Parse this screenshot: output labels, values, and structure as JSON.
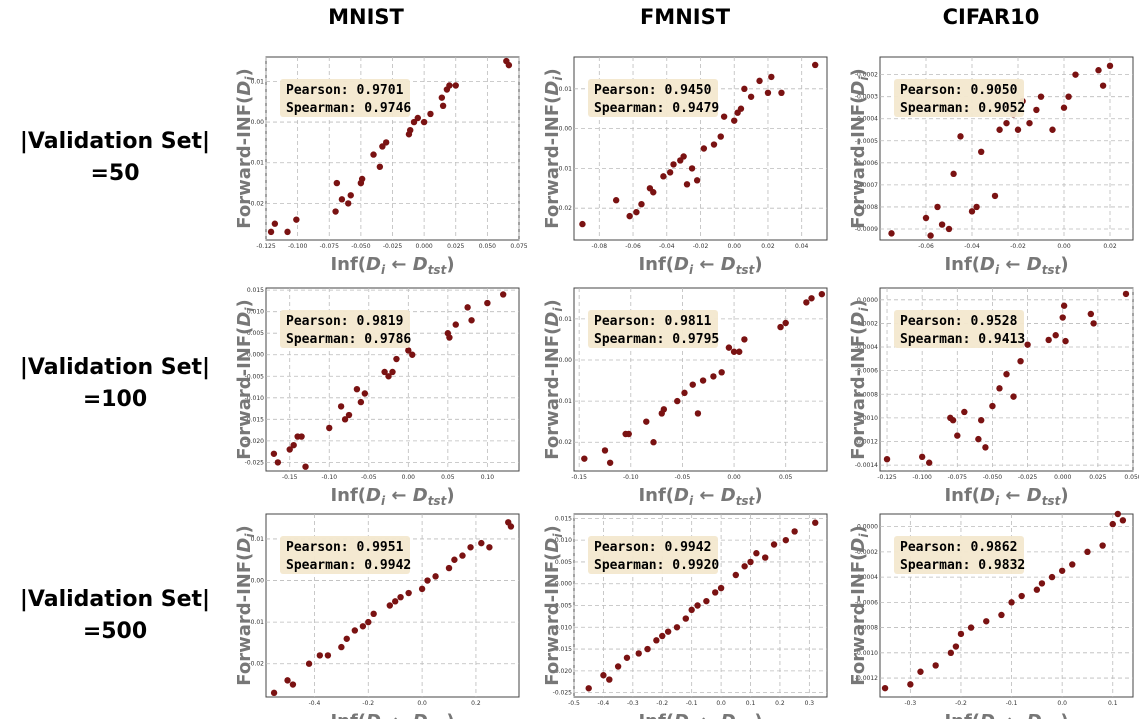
{
  "figure": {
    "column_titles": [
      "MNIST",
      "FMNIST",
      "CIFAR10"
    ],
    "row_labels": [
      [
        "|Validation Set|",
        "=50"
      ],
      [
        "|Validation Set|",
        "=100"
      ],
      [
        "|Validation Set|",
        "=500"
      ]
    ]
  },
  "chart_data": [
    {
      "type": "scatter",
      "dataset": "MNIST",
      "validation_set": "50",
      "xlabel": "Inf(D_i ← D_tst)",
      "ylabel": "Forward-INF(D_i)",
      "annotation": {
        "pearson": "Pearson: 0.9701",
        "spearman": "Spearman: 0.9746"
      },
      "xlim": [
        -0.125,
        0.075
      ],
      "ylim": [
        -0.029,
        0.016
      ],
      "xticks": [
        "-0.125",
        "-0.100",
        "-0.075",
        "-0.050",
        "-0.025",
        "0.000",
        "0.025",
        "0.050",
        "0.075"
      ],
      "yticks": [
        "0.01",
        "0.00",
        "-0.01",
        "-0.02"
      ],
      "x": [
        -0.121,
        -0.118,
        -0.108,
        -0.101,
        -0.07,
        -0.069,
        -0.065,
        -0.06,
        -0.058,
        -0.05,
        -0.049,
        -0.04,
        -0.035,
        -0.033,
        -0.03,
        -0.012,
        -0.011,
        -0.008,
        -0.005,
        0.0,
        0.005,
        0.014,
        0.015,
        0.018,
        0.02,
        0.025,
        0.065,
        0.067
      ],
      "y": [
        -0.027,
        -0.025,
        -0.027,
        -0.024,
        -0.022,
        -0.015,
        -0.019,
        -0.02,
        -0.018,
        -0.015,
        -0.014,
        -0.008,
        -0.011,
        -0.006,
        -0.005,
        -0.003,
        -0.002,
        0.0,
        0.001,
        0.0,
        0.002,
        0.006,
        0.004,
        0.008,
        0.009,
        0.009,
        0.015,
        0.014
      ]
    },
    {
      "type": "scatter",
      "dataset": "FMNIST",
      "validation_set": "50",
      "xlabel": "Inf(D_i ← D_tst)",
      "ylabel": "Forward-INF(D_i)",
      "annotation": {
        "pearson": "Pearson: 0.9450",
        "spearman": "Spearman: 0.9479"
      },
      "xlim": [
        -0.095,
        0.055
      ],
      "ylim": [
        -0.028,
        0.018
      ],
      "xticks": [
        "-0.08",
        "-0.06",
        "-0.04",
        "-0.02",
        "0.00",
        "0.02",
        "0.04"
      ],
      "yticks": [
        "0.01",
        "0.00",
        "-0.01",
        "-0.02"
      ],
      "x": [
        -0.09,
        -0.07,
        -0.062,
        -0.058,
        -0.055,
        -0.05,
        -0.048,
        -0.042,
        -0.038,
        -0.036,
        -0.032,
        -0.03,
        -0.028,
        -0.025,
        -0.022,
        -0.018,
        -0.012,
        -0.008,
        -0.006,
        0.0,
        0.002,
        0.004,
        0.006,
        0.01,
        0.015,
        0.02,
        0.022,
        0.028,
        0.048
      ],
      "y": [
        -0.024,
        -0.018,
        -0.022,
        -0.021,
        -0.019,
        -0.015,
        -0.016,
        -0.012,
        -0.011,
        -0.009,
        -0.008,
        -0.007,
        -0.014,
        -0.01,
        -0.013,
        -0.005,
        -0.004,
        -0.002,
        0.003,
        0.002,
        0.004,
        0.005,
        0.01,
        0.008,
        0.012,
        0.009,
        0.013,
        0.009,
        0.016
      ]
    },
    {
      "type": "scatter",
      "dataset": "CIFAR10",
      "validation_set": "50",
      "xlabel": "Inf(D_i ← D_tst)",
      "ylabel": "Forward-INF(D_i)",
      "annotation": {
        "pearson": "Pearson: 0.9050",
        "spearman": "Spearman: 0.9052"
      },
      "xlim": [
        -0.08,
        0.03
      ],
      "ylim": [
        -0.00095,
        -0.00012
      ],
      "xticks": [
        "-0.06",
        "-0.04",
        "-0.02",
        "0.00",
        "0.02"
      ],
      "yticks": [
        "-0.0002",
        "-0.0003",
        "-0.0004",
        "-0.0005",
        "-0.0006",
        "-0.0007",
        "-0.0008",
        "-0.0009"
      ],
      "x": [
        -0.075,
        -0.06,
        -0.058,
        -0.055,
        -0.053,
        -0.05,
        -0.048,
        -0.045,
        -0.04,
        -0.038,
        -0.036,
        -0.03,
        -0.028,
        -0.025,
        -0.024,
        -0.022,
        -0.02,
        -0.018,
        -0.015,
        -0.012,
        -0.01,
        -0.005,
        0.0,
        0.002,
        0.005,
        0.015,
        0.017,
        0.02
      ],
      "y": [
        -0.00092,
        -0.00085,
        -0.00093,
        -0.0008,
        -0.00088,
        -0.0009,
        -0.00065,
        -0.00048,
        -0.00082,
        -0.0008,
        -0.00055,
        -0.00075,
        -0.00045,
        -0.00042,
        -0.00035,
        -0.00038,
        -0.00045,
        -0.00032,
        -0.00042,
        -0.00036,
        -0.0003,
        -0.00045,
        -0.00035,
        -0.0003,
        -0.0002,
        -0.00018,
        -0.00025,
        -0.00016
      ]
    },
    {
      "type": "scatter",
      "dataset": "MNIST",
      "validation_set": "100",
      "xlabel": "Inf(D_i ← D_tst)",
      "ylabel": "Forward-INF(D_i)",
      "annotation": {
        "pearson": "Pearson: 0.9819",
        "spearman": "Spearman: 0.9786"
      },
      "xlim": [
        -0.18,
        0.14
      ],
      "ylim": [
        -0.027,
        0.0155
      ],
      "xticks": [
        "-0.15",
        "-0.10",
        "-0.05",
        "0.00",
        "0.05",
        "0.10"
      ],
      "yticks": [
        "0.015",
        "0.010",
        "0.005",
        "0.000",
        "-0.005",
        "-0.010",
        "-0.015",
        "-0.020",
        "-0.025"
      ],
      "x": [
        -0.17,
        -0.165,
        -0.15,
        -0.145,
        -0.14,
        -0.135,
        -0.13,
        -0.1,
        -0.085,
        -0.08,
        -0.075,
        -0.065,
        -0.06,
        -0.055,
        -0.03,
        -0.025,
        -0.02,
        -0.015,
        0.0,
        0.005,
        0.05,
        0.052,
        0.06,
        0.075,
        0.08,
        0.1,
        0.12
      ],
      "y": [
        -0.023,
        -0.025,
        -0.022,
        -0.021,
        -0.019,
        -0.019,
        -0.026,
        -0.017,
        -0.012,
        -0.015,
        -0.014,
        -0.008,
        -0.011,
        -0.009,
        -0.004,
        -0.005,
        -0.004,
        -0.001,
        0.001,
        0.0,
        0.005,
        0.004,
        0.007,
        0.011,
        0.008,
        0.012,
        0.014
      ]
    },
    {
      "type": "scatter",
      "dataset": "FMNIST",
      "validation_set": "100",
      "xlabel": "Inf(D_i ← D_tst)",
      "ylabel": "Forward-INF(D_i)",
      "annotation": {
        "pearson": "Pearson: 0.9811",
        "spearman": "Spearman: 0.9795"
      },
      "xlim": [
        -0.155,
        0.09
      ],
      "ylim": [
        -0.027,
        0.0175
      ],
      "xticks": [
        "-0.15",
        "-0.10",
        "-0.05",
        "0.00",
        "0.05"
      ],
      "yticks": [
        "0.01",
        "0.00",
        "-0.01",
        "-0.02"
      ],
      "x": [
        -0.145,
        -0.125,
        -0.12,
        -0.105,
        -0.102,
        -0.085,
        -0.078,
        -0.07,
        -0.068,
        -0.055,
        -0.048,
        -0.04,
        -0.035,
        -0.03,
        -0.02,
        -0.012,
        -0.005,
        0.0,
        0.005,
        0.01,
        0.045,
        0.05,
        0.07,
        0.075,
        0.085
      ],
      "y": [
        -0.024,
        -0.022,
        -0.025,
        -0.018,
        -0.018,
        -0.015,
        -0.02,
        -0.013,
        -0.012,
        -0.01,
        -0.008,
        -0.006,
        -0.013,
        -0.005,
        -0.004,
        -0.003,
        0.003,
        0.002,
        0.002,
        0.005,
        0.008,
        0.009,
        0.014,
        0.015,
        0.016
      ]
    },
    {
      "type": "scatter",
      "dataset": "CIFAR10",
      "validation_set": "100",
      "xlabel": "Inf(D_i ← D_tst)",
      "ylabel": "Forward-INF(D_i)",
      "annotation": {
        "pearson": "Pearson: 0.9528",
        "spearman": "Spearman: 0.9413"
      },
      "xlim": [
        -0.13,
        0.05
      ],
      "ylim": [
        -0.00145,
        0.0001
      ],
      "xticks": [
        "-0.125",
        "-0.100",
        "-0.075",
        "-0.050",
        "-0.025",
        "0.000",
        "0.025",
        "0.050"
      ],
      "yticks": [
        "0.0000",
        "-0.0002",
        "-0.0004",
        "-0.0006",
        "-0.0008",
        "-0.0010",
        "-0.0012",
        "-0.0014"
      ],
      "x": [
        -0.125,
        -0.1,
        -0.095,
        -0.08,
        -0.078,
        -0.075,
        -0.07,
        -0.06,
        -0.058,
        -0.055,
        -0.05,
        -0.045,
        -0.04,
        -0.035,
        -0.03,
        -0.025,
        -0.01,
        -0.005,
        0.0,
        0.001,
        0.002,
        0.02,
        0.022,
        0.045
      ],
      "y": [
        -0.00135,
        -0.00133,
        -0.00138,
        -0.001,
        -0.00102,
        -0.00115,
        -0.00095,
        -0.00118,
        -0.00102,
        -0.00125,
        -0.0009,
        -0.00075,
        -0.00063,
        -0.00082,
        -0.00052,
        -0.00038,
        -0.00034,
        -0.0003,
        -0.00015,
        -5e-05,
        -0.00035,
        -0.00012,
        -0.0002,
        5e-05
      ]
    },
    {
      "type": "scatter",
      "dataset": "MNIST",
      "validation_set": "500",
      "xlabel": "Inf(D_i ← D_tst)",
      "ylabel": "Forward-INF(D_i)",
      "annotation": {
        "pearson": "Pearson: 0.9951",
        "spearman": "Spearman: 0.9942"
      },
      "xlim": [
        -0.58,
        0.36
      ],
      "ylim": [
        -0.028,
        0.016
      ],
      "xticks": [
        "-0.4",
        "-0.2",
        "0.0",
        "0.2"
      ],
      "yticks": [
        "0.01",
        "0.00",
        "-0.01",
        "-0.02"
      ],
      "x": [
        -0.55,
        -0.5,
        -0.48,
        -0.42,
        -0.38,
        -0.35,
        -0.3,
        -0.28,
        -0.25,
        -0.22,
        -0.2,
        -0.18,
        -0.12,
        -0.1,
        -0.08,
        -0.05,
        0.0,
        0.02,
        0.05,
        0.1,
        0.12,
        0.15,
        0.18,
        0.22,
        0.25,
        0.32,
        0.33
      ],
      "y": [
        -0.027,
        -0.024,
        -0.025,
        -0.02,
        -0.018,
        -0.018,
        -0.016,
        -0.014,
        -0.012,
        -0.011,
        -0.01,
        -0.008,
        -0.006,
        -0.005,
        -0.004,
        -0.003,
        -0.002,
        0.0,
        0.001,
        0.003,
        0.005,
        0.006,
        0.008,
        0.009,
        0.008,
        0.014,
        0.013
      ]
    },
    {
      "type": "scatter",
      "dataset": "FMNIST",
      "validation_set": "500",
      "xlabel": "Inf(D_i ← D_tst)",
      "ylabel": "Forward-INF(D_i)",
      "annotation": {
        "pearson": "Pearson: 0.9942",
        "spearman": "Spearman: 0.9920"
      },
      "xlim": [
        -0.5,
        0.36
      ],
      "ylim": [
        -0.026,
        0.016
      ],
      "xticks": [
        "-0.5",
        "-0.4",
        "-0.3",
        "-0.2",
        "-0.1",
        "0.0",
        "0.1",
        "0.2",
        "0.3"
      ],
      "yticks": [
        "0.015",
        "0.010",
        "0.005",
        "0.000",
        "-0.005",
        "-0.010",
        "-0.015",
        "-0.020",
        "-0.025"
      ],
      "x": [
        -0.45,
        -0.4,
        -0.38,
        -0.35,
        -0.32,
        -0.28,
        -0.25,
        -0.22,
        -0.2,
        -0.18,
        -0.15,
        -0.12,
        -0.1,
        -0.08,
        -0.05,
        -0.02,
        0.0,
        0.05,
        0.08,
        0.1,
        0.12,
        0.15,
        0.18,
        0.22,
        0.25,
        0.32
      ],
      "y": [
        -0.024,
        -0.021,
        -0.022,
        -0.019,
        -0.017,
        -0.016,
        -0.015,
        -0.013,
        -0.012,
        -0.011,
        -0.01,
        -0.008,
        -0.006,
        -0.005,
        -0.004,
        -0.002,
        -0.001,
        0.002,
        0.004,
        0.005,
        0.007,
        0.006,
        0.009,
        0.01,
        0.012,
        0.014
      ]
    },
    {
      "type": "scatter",
      "dataset": "CIFAR10",
      "validation_set": "500",
      "xlabel": "Inf(D_i ← D_tst)",
      "ylabel": "Forward-INF(D_i)",
      "annotation": {
        "pearson": "Pearson: 0.9862",
        "spearman": "Spearman: 0.9832"
      },
      "xlim": [
        -0.36,
        0.14
      ],
      "ylim": [
        -0.00135,
        0.0001
      ],
      "xticks": [
        "-0.3",
        "-0.2",
        "-0.1",
        "0.0",
        "0.1"
      ],
      "yticks": [
        "0.0000",
        "-0.0002",
        "-0.0004",
        "-0.0006",
        "-0.0008",
        "-0.0010",
        "-0.0012"
      ],
      "x": [
        -0.35,
        -0.3,
        -0.28,
        -0.25,
        -0.22,
        -0.21,
        -0.2,
        -0.18,
        -0.15,
        -0.12,
        -0.1,
        -0.08,
        -0.05,
        -0.04,
        -0.02,
        0.0,
        0.02,
        0.05,
        0.08,
        0.1,
        0.11,
        0.12
      ],
      "y": [
        -0.00128,
        -0.00125,
        -0.00115,
        -0.0011,
        -0.001,
        -0.00095,
        -0.00085,
        -0.0008,
        -0.00075,
        -0.0007,
        -0.0006,
        -0.00055,
        -0.0005,
        -0.00045,
        -0.0004,
        -0.00035,
        -0.0003,
        -0.0002,
        -0.00015,
        2e-05,
        0.0001,
        5e-05
      ]
    }
  ]
}
